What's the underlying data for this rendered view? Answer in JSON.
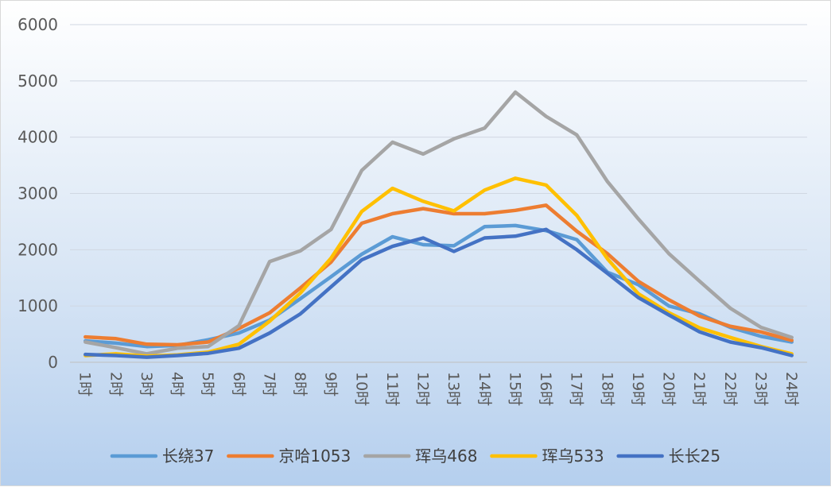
{
  "chart_data": {
    "type": "line",
    "title": "",
    "xlabel": "",
    "ylabel": "",
    "categories": [
      "1时",
      "2时",
      "3时",
      "4时",
      "5时",
      "6时",
      "7时",
      "8时",
      "9时",
      "10时",
      "11时",
      "12时",
      "13时",
      "14时",
      "15时",
      "16时",
      "17时",
      "18时",
      "19时",
      "20时",
      "21时",
      "22时",
      "23时",
      "24时"
    ],
    "ylim": [
      0,
      6000
    ],
    "yticks": [
      0,
      1000,
      2000,
      3000,
      4000,
      5000,
      6000
    ],
    "grid": true,
    "legend_position": "bottom",
    "series": [
      {
        "name": "长绕37",
        "color": "#5B9BD5",
        "values": [
          380,
          340,
          280,
          300,
          400,
          520,
          750,
          1130,
          1520,
          1920,
          2230,
          2090,
          2070,
          2410,
          2430,
          2340,
          2180,
          1600,
          1380,
          1000,
          860,
          620,
          460,
          360
        ]
      },
      {
        "name": "京哈1053",
        "color": "#ED7D31",
        "values": [
          450,
          420,
          320,
          310,
          360,
          600,
          880,
          1320,
          1780,
          2470,
          2640,
          2730,
          2640,
          2640,
          2700,
          2790,
          2330,
          1930,
          1440,
          1110,
          820,
          640,
          540,
          390
        ]
      },
      {
        "name": "珲乌468",
        "color": "#A5A5A5",
        "values": [
          360,
          260,
          150,
          250,
          280,
          650,
          1790,
          1980,
          2360,
          3410,
          3910,
          3700,
          3970,
          4160,
          4800,
          4370,
          4040,
          3210,
          2550,
          1930,
          1440,
          960,
          620,
          440
        ]
      },
      {
        "name": "珲乌533",
        "color": "#FFC000",
        "values": [
          120,
          150,
          110,
          130,
          180,
          320,
          730,
          1230,
          1850,
          2680,
          3090,
          2860,
          2690,
          3060,
          3270,
          3150,
          2610,
          1840,
          1220,
          880,
          610,
          440,
          280,
          150
        ]
      },
      {
        "name": "长长25",
        "color": "#4472C4",
        "values": [
          140,
          120,
          90,
          120,
          160,
          250,
          520,
          860,
          1340,
          1820,
          2060,
          2210,
          1970,
          2210,
          2240,
          2360,
          2000,
          1580,
          1150,
          840,
          540,
          360,
          260,
          120
        ]
      }
    ]
  }
}
